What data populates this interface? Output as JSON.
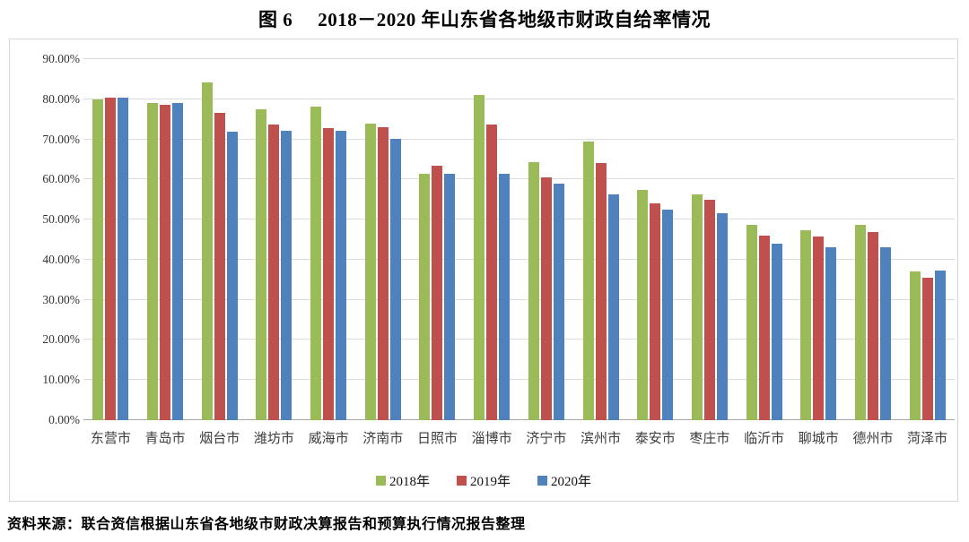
{
  "title": {
    "prefix": "图 6",
    "text": "2018－2020 年山东省各地级市财政自给率情况"
  },
  "source_note": "资料来源：联合资信根据山东省各地级市财政决算报告和预算执行情况报告整理",
  "colors": {
    "series_2018": "#9BBB59",
    "series_2019": "#C0504D",
    "series_2020": "#4F81BD",
    "gridline": "#DCDCDC",
    "axis_line": "#A6A6A6",
    "frame_border": "#D6D6D6"
  },
  "chart_data": {
    "type": "bar",
    "title": "图 6 2018－2020 年山东省各地级市财政自给率情况",
    "xlabel": "",
    "ylabel": "",
    "ylim": [
      0,
      90
    ],
    "ytick_step": 10,
    "yticks": [
      "0.00%",
      "10.00%",
      "20.00%",
      "30.00%",
      "40.00%",
      "50.00%",
      "60.00%",
      "70.00%",
      "80.00%",
      "90.00%"
    ],
    "grid": "horizontal",
    "legend_position": "bottom",
    "categories": [
      "东营市",
      "青岛市",
      "烟台市",
      "潍坊市",
      "威海市",
      "济南市",
      "日照市",
      "淄博市",
      "济宁市",
      "滨州市",
      "泰安市",
      "枣庄市",
      "临沂市",
      "聊城市",
      "德州市",
      "菏泽市"
    ],
    "series": [
      {
        "name": "2018年",
        "color": "#9BBB59",
        "values": [
          80.0,
          79.0,
          84.3,
          77.6,
          78.2,
          74.0,
          61.4,
          81.1,
          64.3,
          69.5,
          57.5,
          56.2,
          48.6,
          47.3,
          48.6,
          37.0
        ]
      },
      {
        "name": "2019年",
        "color": "#C0504D",
        "values": [
          80.3,
          78.7,
          76.7,
          73.6,
          72.8,
          73.1,
          63.5,
          73.7,
          60.6,
          64.0,
          54.0,
          55.0,
          46.1,
          45.7,
          46.8,
          35.6
        ]
      },
      {
        "name": "2020年",
        "color": "#4F81BD",
        "values": [
          80.3,
          79.0,
          71.9,
          72.2,
          72.1,
          70.1,
          61.5,
          61.4,
          58.9,
          56.2,
          52.4,
          51.7,
          43.9,
          43.2,
          43.1,
          37.4
        ]
      }
    ]
  }
}
